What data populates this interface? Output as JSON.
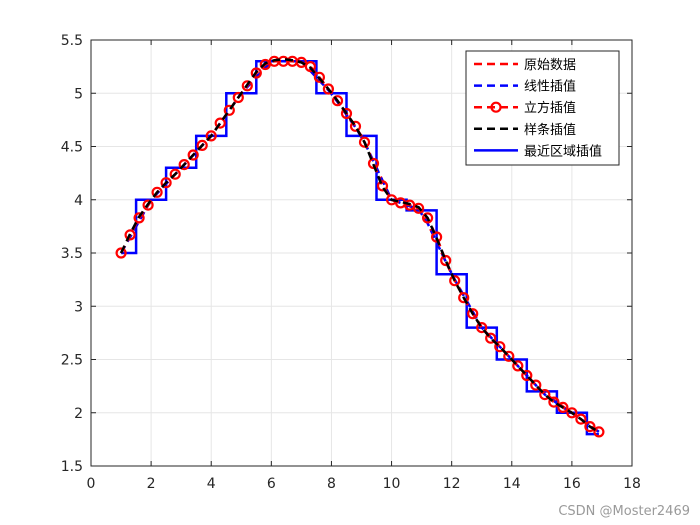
{
  "chart_data": {
    "type": "line",
    "title": "",
    "xlabel": "",
    "ylabel": "",
    "xlim": [
      0,
      18
    ],
    "ylim": [
      1.5,
      5.5
    ],
    "xticks": [
      "0",
      "2",
      "4",
      "6",
      "8",
      "10",
      "12",
      "14",
      "16",
      "18"
    ],
    "yticks": [
      "1.5",
      "2",
      "2.5",
      "3",
      "3.5",
      "4",
      "4.5",
      "5",
      "5.5"
    ],
    "grid": true,
    "legend_position": "top-right",
    "original_points": {
      "x": [
        1,
        2,
        3,
        4,
        5,
        6,
        7,
        8,
        9,
        10,
        11,
        12,
        13,
        14,
        15,
        16,
        17
      ],
      "y": [
        3.5,
        4.0,
        4.3,
        4.6,
        5.0,
        5.3,
        5.3,
        5.0,
        4.6,
        4.0,
        3.9,
        3.3,
        2.8,
        2.5,
        2.2,
        2.0,
        1.8
      ]
    },
    "fine_x": [
      1.0,
      1.3,
      1.6,
      1.9,
      2.2,
      2.5,
      2.8,
      3.1,
      3.4,
      3.7,
      4.0,
      4.3,
      4.6,
      4.9,
      5.2,
      5.5,
      5.8,
      6.1,
      6.4,
      6.7,
      7.0,
      7.3,
      7.6,
      7.9,
      8.2,
      8.5,
      8.8,
      9.1,
      9.4,
      9.7,
      10.0,
      10.3,
      10.6,
      10.9,
      11.2,
      11.5,
      11.8,
      12.1,
      12.4,
      12.7,
      13.0,
      13.3,
      13.6,
      13.9,
      14.2,
      14.5,
      14.8,
      15.1,
      15.4,
      15.7,
      16.0,
      16.3,
      16.6,
      16.9
    ],
    "series": [
      {
        "name": "原始数据",
        "color": "#ff0000",
        "style": "dashed",
        "values": [
          3.5,
          4.0,
          4.3,
          4.6,
          5.0,
          5.3,
          5.3,
          5.0,
          4.6,
          4.0,
          3.9,
          3.3,
          2.8,
          2.5,
          2.2,
          2.0,
          1.8
        ]
      },
      {
        "name": "线性插值",
        "color": "#0000ff",
        "style": "dashed",
        "values": [
          3.5,
          3.65,
          3.8,
          3.95,
          4.06,
          4.15,
          4.24,
          4.33,
          4.42,
          4.51,
          4.6,
          4.72,
          4.84,
          4.96,
          5.06,
          5.15,
          5.24,
          5.3,
          5.3,
          5.3,
          5.3,
          5.21,
          5.12,
          5.03,
          4.92,
          4.8,
          4.68,
          4.54,
          4.36,
          4.18,
          4.0,
          3.97,
          3.94,
          3.91,
          3.78,
          3.6,
          3.42,
          3.25,
          3.1,
          2.95,
          2.8,
          2.71,
          2.62,
          2.53,
          2.44,
          2.35,
          2.26,
          2.17,
          2.11,
          2.05,
          2.0,
          1.94,
          1.88,
          1.82
        ]
      },
      {
        "name": "立方插值",
        "color": "#ff0000",
        "style": "dashed",
        "marker": "circle",
        "values": [
          3.5,
          3.67,
          3.83,
          3.95,
          4.07,
          4.16,
          4.24,
          4.33,
          4.42,
          4.51,
          4.6,
          4.72,
          4.84,
          4.96,
          5.07,
          5.19,
          5.27,
          5.3,
          5.3,
          5.3,
          5.29,
          5.25,
          5.15,
          5.04,
          4.93,
          4.81,
          4.69,
          4.54,
          4.34,
          4.13,
          4.0,
          3.97,
          3.95,
          3.92,
          3.83,
          3.65,
          3.43,
          3.24,
          3.08,
          2.93,
          2.8,
          2.7,
          2.62,
          2.53,
          2.44,
          2.35,
          2.26,
          2.17,
          2.1,
          2.05,
          2.0,
          1.94,
          1.87,
          1.82
        ]
      },
      {
        "name": "样条插值",
        "color": "#000000",
        "style": "dashed",
        "values": [
          3.5,
          3.68,
          3.84,
          3.96,
          4.07,
          4.16,
          4.24,
          4.33,
          4.42,
          4.51,
          4.6,
          4.72,
          4.84,
          4.96,
          5.08,
          5.2,
          5.28,
          5.31,
          5.32,
          5.31,
          5.29,
          5.24,
          5.14,
          5.04,
          4.93,
          4.81,
          4.69,
          4.54,
          4.33,
          4.12,
          4.0,
          3.98,
          3.96,
          3.93,
          3.83,
          3.64,
          3.43,
          3.24,
          3.08,
          2.93,
          2.8,
          2.7,
          2.62,
          2.53,
          2.44,
          2.35,
          2.26,
          2.17,
          2.1,
          2.05,
          2.0,
          1.94,
          1.87,
          1.82
        ]
      },
      {
        "name": "最近区域插值",
        "color": "#0000ff",
        "style": "solid",
        "step_edges_x": [
          1.0,
          1.5,
          1.5,
          2.5,
          2.5,
          3.5,
          3.5,
          4.5,
          4.5,
          5.5,
          5.5,
          7.5,
          7.5,
          8.5,
          8.5,
          9.5,
          9.5,
          10.5,
          10.5,
          11.5,
          11.5,
          12.5,
          12.5,
          13.5,
          13.5,
          14.5,
          14.5,
          15.5,
          15.5,
          16.5,
          16.5,
          16.9
        ],
        "step_edges_y": [
          3.5,
          3.5,
          4.0,
          4.0,
          4.3,
          4.3,
          4.6,
          4.6,
          5.0,
          5.0,
          5.3,
          5.3,
          5.0,
          5.0,
          4.6,
          4.6,
          4.0,
          4.0,
          3.9,
          3.9,
          3.3,
          3.3,
          2.8,
          2.8,
          2.5,
          2.5,
          2.2,
          2.2,
          2.0,
          2.0,
          1.8,
          1.8
        ]
      }
    ],
    "watermark": "CSDN @Moster2469"
  }
}
